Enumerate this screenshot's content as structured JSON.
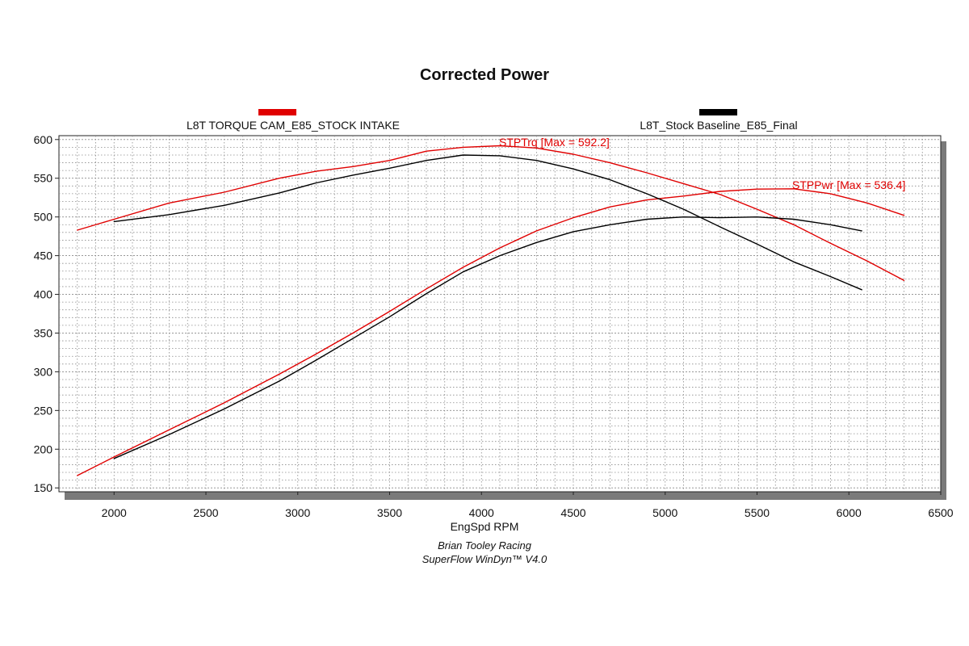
{
  "chart_data": {
    "type": "line",
    "title": "Corrected Power",
    "xlabel": "EngSpd RPM",
    "ylabel": "",
    "xlim": [
      1700,
      6500
    ],
    "ylim": [
      145,
      605
    ],
    "xticks": [
      2000,
      2500,
      3000,
      3500,
      4000,
      4500,
      5000,
      5500,
      6000,
      6500
    ],
    "yticks": [
      150,
      200,
      250,
      300,
      350,
      400,
      450,
      500,
      550,
      600
    ],
    "grid": true,
    "legend_placement": "top",
    "legend": [
      {
        "label": "L8T TORQUE CAM_E85_STOCK INTAKE",
        "color": "#e00000"
      },
      {
        "label": "L8T_Stock Baseline_E85_Final",
        "color": "#000000"
      }
    ],
    "annotations": [
      {
        "text": "STPTrq [Max = 592.2]",
        "color": "#e00000"
      },
      {
        "text": "STPPwr [Max = 536.4]",
        "color": "#e00000"
      }
    ],
    "series": [
      {
        "name": "L8T TORQUE CAM_E85_STOCK INTAKE",
        "color": "#e00000",
        "x": [
          1800,
          2000,
          2300,
          2600,
          2900,
          3100,
          3300,
          3500,
          3700,
          3900,
          4100,
          4300,
          4500,
          4700,
          4900,
          5100,
          5300,
          5500,
          5700,
          5900,
          6100,
          6300
        ],
        "values": [
          483,
          497,
          518,
          532,
          550,
          559,
          565,
          573,
          585,
          590,
          592,
          589,
          581,
          570,
          557,
          543,
          529,
          510,
          490,
          466,
          443,
          418
        ]
      },
      {
        "name": "L8T TORQUE CAM_E85_STOCK INTAKE",
        "color": "#e00000",
        "x": [
          1800,
          2000,
          2300,
          2600,
          2900,
          3100,
          3300,
          3500,
          3700,
          3900,
          4100,
          4300,
          4500,
          4700,
          4900,
          5100,
          5300,
          5500,
          5700,
          5900,
          6100,
          6300
        ],
        "values": [
          166,
          190,
          225,
          260,
          297,
          323,
          350,
          378,
          407,
          435,
          460,
          482,
          499,
          513,
          522,
          527,
          533,
          536,
          536.4,
          530,
          518,
          502
        ]
      },
      {
        "name": "L8T_Stock Baseline_E85_Final",
        "color": "#000000",
        "x": [
          2000,
          2300,
          2600,
          2900,
          3100,
          3300,
          3500,
          3700,
          3900,
          4100,
          4300,
          4500,
          4700,
          4900,
          5100,
          5300,
          5500,
          5700,
          5900,
          6070
        ],
        "values": [
          494,
          503,
          515,
          531,
          544,
          554,
          563,
          573,
          580,
          579,
          573,
          562,
          548,
          530,
          510,
          487,
          465,
          442,
          423,
          406
        ]
      },
      {
        "name": "L8T_Stock Baseline_E85_Final",
        "color": "#000000",
        "x": [
          2000,
          2300,
          2600,
          2900,
          3100,
          3300,
          3500,
          3700,
          3900,
          4100,
          4300,
          4500,
          4700,
          4900,
          5100,
          5300,
          5500,
          5700,
          5900,
          6070
        ],
        "values": [
          188,
          219,
          252,
          288,
          315,
          343,
          371,
          401,
          429,
          450,
          467,
          481,
          490,
          497,
          500,
          499,
          500,
          497,
          490,
          482
        ]
      }
    ],
    "footer_lines": [
      "Brian Tooley Racing",
      "SuperFlow WinDyn™  V4.0"
    ]
  }
}
